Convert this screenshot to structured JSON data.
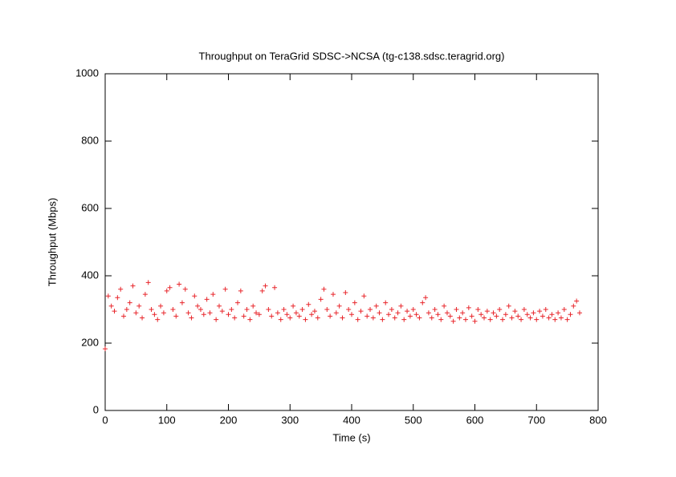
{
  "chart_data": {
    "type": "scatter",
    "title": "Throughput on TeraGrid SDSC->NCSA (tg-c138.sdsc.teragrid.org)",
    "x_label": "Time (s)",
    "y_label": "Throughput (Mbps)",
    "xlim": [
      0,
      800
    ],
    "ylim": [
      0,
      1000
    ],
    "xticks": [
      0,
      100,
      200,
      300,
      400,
      500,
      600,
      700,
      800
    ],
    "yticks": [
      0,
      200,
      400,
      600,
      800,
      1000
    ],
    "color": "#e8262b",
    "marker": "plus",
    "x": [
      0,
      5,
      10,
      15,
      20,
      25,
      30,
      35,
      40,
      45,
      50,
      55,
      60,
      65,
      70,
      75,
      80,
      85,
      90,
      95,
      100,
      105,
      110,
      115,
      120,
      125,
      130,
      135,
      140,
      145,
      150,
      155,
      160,
      165,
      170,
      175,
      180,
      185,
      190,
      195,
      200,
      205,
      210,
      215,
      220,
      225,
      230,
      235,
      240,
      245,
      250,
      255,
      260,
      265,
      270,
      275,
      280,
      285,
      290,
      295,
      300,
      305,
      310,
      315,
      320,
      325,
      330,
      335,
      340,
      345,
      350,
      355,
      360,
      365,
      370,
      375,
      380,
      385,
      390,
      395,
      400,
      405,
      410,
      415,
      420,
      425,
      430,
      435,
      440,
      445,
      450,
      455,
      460,
      465,
      470,
      475,
      480,
      485,
      490,
      495,
      500,
      505,
      510,
      515,
      520,
      525,
      530,
      535,
      540,
      545,
      550,
      555,
      560,
      565,
      570,
      575,
      580,
      585,
      590,
      595,
      600,
      605,
      610,
      615,
      620,
      625,
      630,
      635,
      640,
      645,
      650,
      655,
      660,
      665,
      670,
      675,
      680,
      685,
      690,
      695,
      700,
      705,
      710,
      715,
      720,
      725,
      730,
      735,
      740,
      745,
      750,
      755,
      760,
      765,
      770
    ],
    "values": [
      183,
      340,
      310,
      295,
      335,
      360,
      280,
      300,
      320,
      370,
      290,
      310,
      275,
      345,
      380,
      300,
      285,
      270,
      310,
      290,
      355,
      365,
      300,
      280,
      375,
      320,
      360,
      290,
      275,
      340,
      310,
      300,
      285,
      330,
      290,
      345,
      270,
      310,
      295,
      360,
      285,
      300,
      275,
      320,
      355,
      280,
      300,
      270,
      310,
      290,
      285,
      355,
      370,
      300,
      280,
      365,
      290,
      270,
      300,
      285,
      275,
      310,
      290,
      280,
      300,
      270,
      315,
      285,
      295,
      275,
      330,
      360,
      300,
      280,
      345,
      290,
      310,
      275,
      350,
      300,
      285,
      320,
      270,
      295,
      340,
      280,
      300,
      275,
      310,
      290,
      270,
      320,
      285,
      300,
      275,
      290,
      310,
      270,
      295,
      280,
      300,
      285,
      275,
      320,
      335,
      290,
      275,
      300,
      285,
      270,
      310,
      290,
      280,
      265,
      300,
      275,
      290,
      270,
      305,
      280,
      265,
      300,
      285,
      275,
      295,
      270,
      290,
      280,
      300,
      270,
      285,
      310,
      275,
      295,
      280,
      270,
      300,
      285,
      275,
      290,
      270,
      295,
      280,
      300,
      275,
      285,
      270,
      290,
      275,
      300,
      270,
      285,
      310,
      325,
      290
    ]
  }
}
